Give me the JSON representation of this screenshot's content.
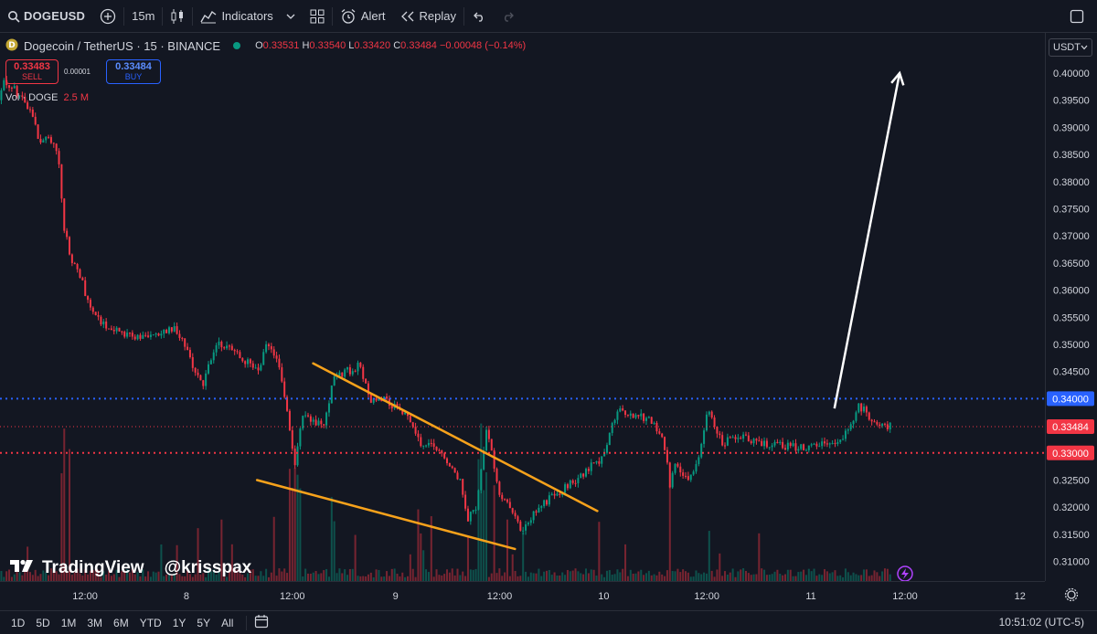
{
  "toolbar": {
    "symbol": "DOGEUSD",
    "interval": "15m",
    "indicators_label": "Indicators",
    "alert_label": "Alert",
    "replay_label": "Replay"
  },
  "legend": {
    "title": "Dogecoin / TetherUS · 15 · BINANCE",
    "open_key": "O",
    "open": "0.33531",
    "high_key": "H",
    "high": "0.33540",
    "low_key": "L",
    "low": "0.33420",
    "close_key": "C",
    "close": "0.33484",
    "change": "−0.00048 (−0.14%)"
  },
  "trade": {
    "sell_price": "0.33483",
    "sell_label": "SELL",
    "spread": "0.00001",
    "buy_price": "0.33484",
    "buy_label": "BUY"
  },
  "volume": {
    "label": "Vol · DOGE",
    "value": "2.5 M"
  },
  "price_axis": {
    "unit": "USDT"
  },
  "bottom": {
    "ranges": [
      "1D",
      "5D",
      "1M",
      "3M",
      "6M",
      "YTD",
      "1Y",
      "5Y",
      "All"
    ],
    "clock": "10:51:02 (UTC-5)"
  },
  "watermark": {
    "brand": "TradingView",
    "handle": "@krisspax"
  },
  "colors": {
    "up": "#089981",
    "down": "#f23645",
    "trendline": "#f7a21b",
    "resistance": "#2962ff",
    "support": "#f23645",
    "arrow": "#ffffff"
  },
  "chart_data": {
    "type": "candlestick",
    "symbol": "DOGE / USDT",
    "interval": "15m",
    "y_ticks": [
      0.4,
      0.395,
      0.39,
      0.385,
      0.38,
      0.375,
      0.37,
      0.365,
      0.36,
      0.355,
      0.35,
      0.345,
      0.34,
      0.335,
      0.33,
      0.325,
      0.32,
      0.315,
      0.31
    ],
    "ylim": [
      0.3082,
      0.4065
    ],
    "x_labels": [
      "12:00",
      "8",
      "12:00",
      "9",
      "12:00",
      "10",
      "12:00",
      "11",
      "12:00",
      "12"
    ],
    "price_path": [
      [
        0,
        0.395
      ],
      [
        0.006,
        0.3985
      ],
      [
        0.02,
        0.3965
      ],
      [
        0.035,
        0.3935
      ],
      [
        0.045,
        0.387
      ],
      [
        0.055,
        0.388
      ],
      [
        0.065,
        0.386
      ],
      [
        0.072,
        0.372
      ],
      [
        0.08,
        0.365
      ],
      [
        0.09,
        0.363
      ],
      [
        0.1,
        0.357
      ],
      [
        0.115,
        0.354
      ],
      [
        0.14,
        0.352
      ],
      [
        0.17,
        0.351
      ],
      [
        0.195,
        0.353
      ],
      [
        0.21,
        0.348
      ],
      [
        0.225,
        0.342
      ],
      [
        0.24,
        0.35
      ],
      [
        0.26,
        0.349
      ],
      [
        0.285,
        0.345
      ],
      [
        0.297,
        0.35
      ],
      [
        0.31,
        0.346
      ],
      [
        0.32,
        0.337
      ],
      [
        0.327,
        0.327
      ],
      [
        0.335,
        0.337
      ],
      [
        0.345,
        0.336
      ],
      [
        0.36,
        0.335
      ],
      [
        0.37,
        0.344
      ],
      [
        0.385,
        0.345
      ],
      [
        0.398,
        0.346
      ],
      [
        0.41,
        0.34
      ],
      [
        0.43,
        0.3395
      ],
      [
        0.45,
        0.337
      ],
      [
        0.465,
        0.332
      ],
      [
        0.48,
        0.331
      ],
      [
        0.495,
        0.329
      ],
      [
        0.51,
        0.325
      ],
      [
        0.518,
        0.318
      ],
      [
        0.527,
        0.32
      ],
      [
        0.54,
        0.335
      ],
      [
        0.552,
        0.323
      ],
      [
        0.563,
        0.32
      ],
      [
        0.578,
        0.316
      ],
      [
        0.592,
        0.319
      ],
      [
        0.61,
        0.322
      ],
      [
        0.63,
        0.324
      ],
      [
        0.65,
        0.327
      ],
      [
        0.668,
        0.329
      ],
      [
        0.683,
        0.338
      ],
      [
        0.7,
        0.337
      ],
      [
        0.72,
        0.336
      ],
      [
        0.735,
        0.332
      ],
      [
        0.742,
        0.324
      ],
      [
        0.748,
        0.329
      ],
      [
        0.757,
        0.325
      ],
      [
        0.77,
        0.327
      ],
      [
        0.783,
        0.338
      ],
      [
        0.8,
        0.332
      ],
      [
        0.82,
        0.333
      ],
      [
        0.84,
        0.332
      ],
      [
        0.86,
        0.3315
      ],
      [
        0.885,
        0.331
      ],
      [
        0.905,
        0.3315
      ],
      [
        0.925,
        0.332
      ],
      [
        0.942,
        0.335
      ],
      [
        0.95,
        0.339
      ],
      [
        0.965,
        0.336
      ],
      [
        0.985,
        0.3348
      ]
    ],
    "volume_profile_note": "",
    "horizontal_lines": [
      {
        "price": 0.34,
        "style": "dotted",
        "color": "#2962ff"
      },
      {
        "price": 0.33484,
        "style": "dotted",
        "color": "#f23645"
      },
      {
        "price": 0.33,
        "style": "dotted",
        "color": "#f23645"
      }
    ],
    "price_labels": [
      {
        "text": "0.34000",
        "price": 0.34,
        "bg": "#2962ff"
      },
      {
        "text": "0.33484",
        "price": 0.33484,
        "bg": "#f23645"
      },
      {
        "text": "0.33000",
        "price": 0.33,
        "bg": "#f23645"
      }
    ],
    "trendlines": [
      {
        "t0": 0.346,
        "p0": 0.3465,
        "t1": 0.66,
        "p1": 0.3193
      },
      {
        "t0": 0.284,
        "p0": 0.325,
        "t1": 0.569,
        "p1": 0.3123
      }
    ],
    "arrow": {
      "t0": 0.922,
      "p0": 0.3382,
      "t1": 0.994,
      "p1": 0.4
    }
  }
}
